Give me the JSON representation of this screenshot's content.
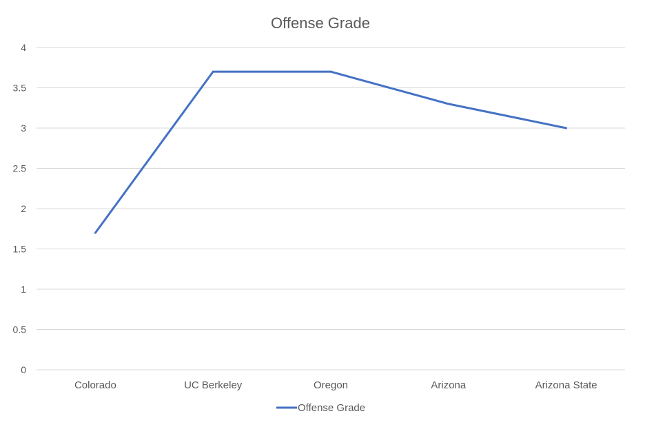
{
  "chart_data": {
    "type": "line",
    "title": "Offense Grade",
    "categories": [
      "Colorado",
      "UC Berkeley",
      "Oregon",
      "Arizona",
      "Arizona State"
    ],
    "series": [
      {
        "name": "Offense Grade",
        "values": [
          1.7,
          3.7,
          3.7,
          3.3,
          3.0
        ],
        "color": "#4472c4"
      }
    ],
    "yticks": [
      "0",
      "0.5",
      "1",
      "1.5",
      "2",
      "2.5",
      "3",
      "3.5",
      "4"
    ],
    "ylim": [
      0,
      4
    ],
    "grid": true,
    "legend": "bottom"
  }
}
